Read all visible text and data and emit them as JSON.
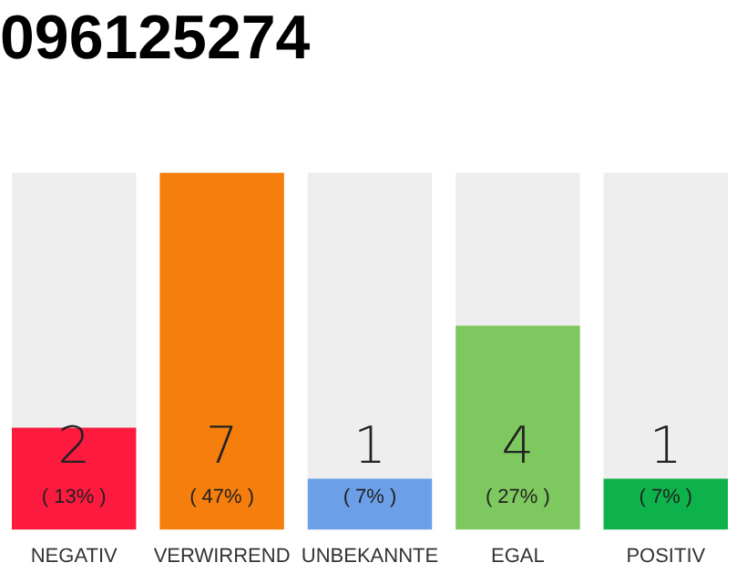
{
  "chart_data": {
    "type": "bar",
    "title": "096125274",
    "categories": [
      "NEGATIV",
      "VERWIRREND",
      "UNBEKANNTE",
      "EGAL",
      "POSITIV"
    ],
    "values": [
      2,
      7,
      1,
      4,
      1
    ],
    "colors": [
      "#fc1a3e",
      "#f57e0d",
      "#6b9fe8",
      "#7ec95f",
      "#0db24b"
    ],
    "tick_labels": "x",
    "grid": false,
    "legend": false,
    "value_labels": [
      "2\n( 13% )",
      "7\n( 47% )",
      "1\n( 7% )",
      "4\n( 27% )",
      "1\n( 7% )"
    ]
  }
}
